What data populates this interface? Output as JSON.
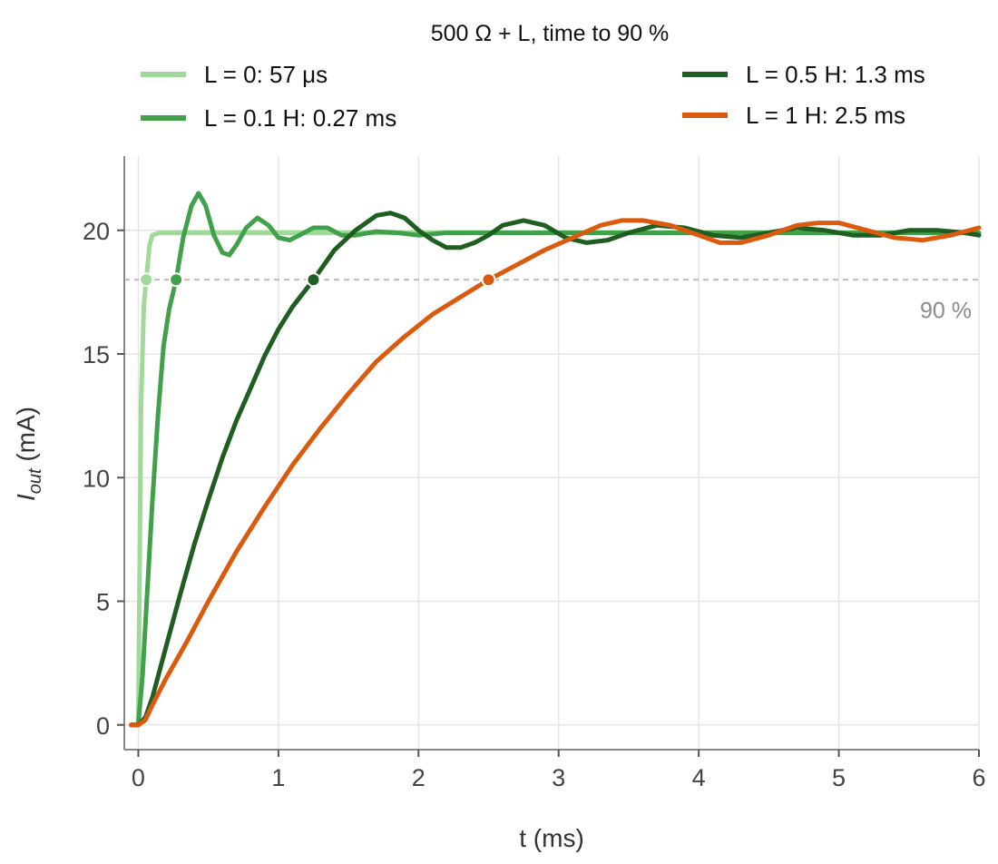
{
  "chart_data": {
    "type": "line",
    "title": "500 Ω + L, time to 90 %",
    "xlabel": "t (ms)",
    "ylabel": "I_out (mA)",
    "ylabel_main": "I",
    "ylabel_sub": "out",
    "ylabel_unit": " (mA)",
    "xlim": [
      -0.1,
      6
    ],
    "ylim": [
      -1,
      23
    ],
    "xticks": [
      0,
      1,
      2,
      3,
      4,
      5,
      6
    ],
    "xtick_labels": [
      "0",
      "1",
      "2",
      "3",
      "4",
      "5",
      "6"
    ],
    "yticks": [
      0,
      5,
      10,
      15,
      20
    ],
    "ytick_labels": [
      "0",
      "5",
      "10",
      "15",
      "20"
    ],
    "grid": true,
    "legend_placement": "top, two columns",
    "threshold": {
      "y": 18,
      "label": "90 %",
      "color": "#bbbbbb"
    },
    "series": [
      {
        "name": "L = 0: 57 μs",
        "color": "#a1d99b",
        "t90": 0.057,
        "x": [
          -0.05,
          0,
          0.02,
          0.04,
          0.057,
          0.08,
          0.1,
          0.15,
          0.2,
          1,
          2,
          3,
          4,
          5,
          6
        ],
        "y": [
          0,
          0,
          13,
          17,
          18,
          19.4,
          19.8,
          19.9,
          19.9,
          19.9,
          19.9,
          19.9,
          19.9,
          19.9,
          19.9
        ]
      },
      {
        "name": "L = 0.1 H: 0.27 ms",
        "color": "#41a14a",
        "t90": 0.27,
        "x": [
          -0.05,
          0,
          0.03,
          0.06,
          0.1,
          0.14,
          0.18,
          0.22,
          0.27,
          0.32,
          0.38,
          0.43,
          0.48,
          0.54,
          0.6,
          0.65,
          0.7,
          0.77,
          0.85,
          0.93,
          1,
          1.08,
          1.15,
          1.25,
          1.35,
          1.45,
          1.55,
          1.7,
          1.85,
          2,
          2.2,
          2.4,
          3,
          4,
          5,
          6
        ],
        "y": [
          0,
          0,
          2,
          5,
          9,
          12.5,
          15.3,
          16.8,
          18,
          19.7,
          21,
          21.5,
          21,
          19.8,
          19.1,
          19.0,
          19.4,
          20.1,
          20.5,
          20.2,
          19.7,
          19.6,
          19.8,
          20.1,
          20.1,
          19.8,
          19.8,
          19.95,
          19.9,
          19.8,
          19.9,
          19.9,
          19.9,
          19.9,
          19.9,
          19.9
        ]
      },
      {
        "name": "L = 0.5 H: 1.3 ms",
        "color": "#1e5e20",
        "t90": 1.25,
        "x": [
          -0.05,
          0,
          0.05,
          0.1,
          0.2,
          0.3,
          0.4,
          0.5,
          0.6,
          0.7,
          0.8,
          0.9,
          1,
          1.1,
          1.25,
          1.4,
          1.55,
          1.7,
          1.8,
          1.9,
          2,
          2.1,
          2.2,
          2.3,
          2.4,
          2.5,
          2.6,
          2.75,
          2.9,
          3.05,
          3.2,
          3.35,
          3.5,
          3.7,
          3.9,
          4.1,
          4.3,
          4.5,
          4.7,
          4.9,
          5.1,
          5.3,
          5.5,
          5.7,
          5.9,
          6
        ],
        "y": [
          0,
          0,
          0.3,
          1.1,
          3.2,
          5.3,
          7.3,
          9.1,
          10.8,
          12.3,
          13.6,
          14.9,
          16.0,
          16.9,
          18,
          19.2,
          20.0,
          20.6,
          20.7,
          20.5,
          20.0,
          19.6,
          19.3,
          19.3,
          19.5,
          19.8,
          20.2,
          20.4,
          20.2,
          19.7,
          19.5,
          19.6,
          19.9,
          20.2,
          20.1,
          19.8,
          19.7,
          19.9,
          20.1,
          20.0,
          19.8,
          19.8,
          20.0,
          20.0,
          19.9,
          19.8
        ]
      },
      {
        "name": "L = 1 H: 2.5 ms",
        "color": "#dc5a0e",
        "t90": 2.5,
        "x": [
          -0.05,
          0,
          0.05,
          0.1,
          0.2,
          0.35,
          0.5,
          0.7,
          0.9,
          1.1,
          1.3,
          1.5,
          1.7,
          1.9,
          2.1,
          2.3,
          2.5,
          2.7,
          2.9,
          3.1,
          3.3,
          3.45,
          3.6,
          3.8,
          4.0,
          4.15,
          4.3,
          4.5,
          4.7,
          4.85,
          5.0,
          5.2,
          5.4,
          5.6,
          5.8,
          6
        ],
        "y": [
          0,
          0,
          0.2,
          0.8,
          1.9,
          3.4,
          5.0,
          7.0,
          8.8,
          10.5,
          12.0,
          13.4,
          14.7,
          15.7,
          16.6,
          17.3,
          18,
          18.6,
          19.2,
          19.7,
          20.2,
          20.4,
          20.4,
          20.2,
          19.8,
          19.5,
          19.5,
          19.8,
          20.2,
          20.3,
          20.3,
          20.0,
          19.7,
          19.6,
          19.8,
          20.1
        ]
      }
    ]
  }
}
